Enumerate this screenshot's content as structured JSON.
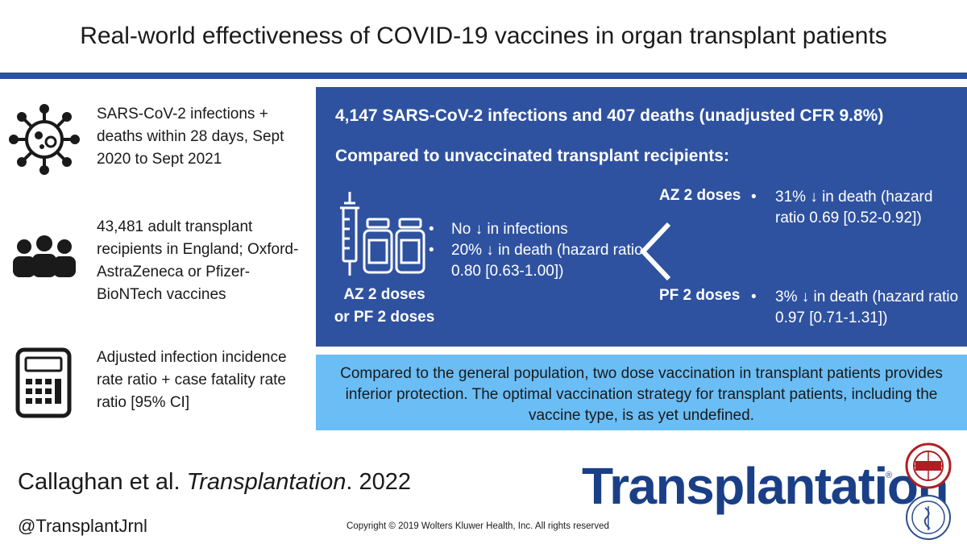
{
  "title": "Real-world effectiveness of COVID-19 vaccines in organ transplant patients",
  "left_items": [
    {
      "icon": "virus-icon",
      "text": "SARS-CoV-2 infections + deaths within 28 days, Sept 2020 to Sept 2021"
    },
    {
      "icon": "people-group-icon",
      "text": "43,481 adult transplant recipients in England; Oxford-AstraZeneca or Pfizer-BioNTech vaccines"
    },
    {
      "icon": "calculator-icon",
      "text": "Adjusted infection incidence rate ratio + case fatality rate ratio [95% CI]"
    }
  ],
  "blue_box": {
    "headline": "4,147 SARS-CoV-2 infections and 407 deaths (unadjusted CFR 9.8%)",
    "subhead": "Compared to unvaccinated transplant recipients:",
    "doses_label_line1": "AZ 2 doses",
    "doses_label_line2": "or PF 2 doses",
    "bullets": [
      "No ↓ in infections",
      "20% ↓ in death (hazard ratio 0.80 [0.63-1.00])"
    ],
    "az_label": "AZ 2 doses",
    "az_text": "31% ↓ in death (hazard ratio 0.69 [0.52-0.92])",
    "pf_label": "PF 2 doses",
    "pf_text": "3% ↓ in death (hazard ratio 0.97 [0.71-1.31])"
  },
  "conclusion": "Compared to the general population, two dose vaccination in transplant patients provides inferior protection. The optimal vaccination strategy for transplant patients, including the vaccine type, is as yet undefined.",
  "citation": {
    "authors": "Callaghan et al. ",
    "journal": "Transplantation",
    "year": ". 2022"
  },
  "handle": "@TransplantJrnl",
  "copyright": "Copyright © 2019  Wolters Kluwer Health, Inc. All rights reserved",
  "brand": "Transplantation",
  "brand_mark": "®",
  "colors": {
    "rule": "#2a50a0",
    "blue_box": "#2f52a0",
    "light_box": "#6bbdf5",
    "brand": "#1a3f87",
    "seal_red": "#b01e24"
  }
}
